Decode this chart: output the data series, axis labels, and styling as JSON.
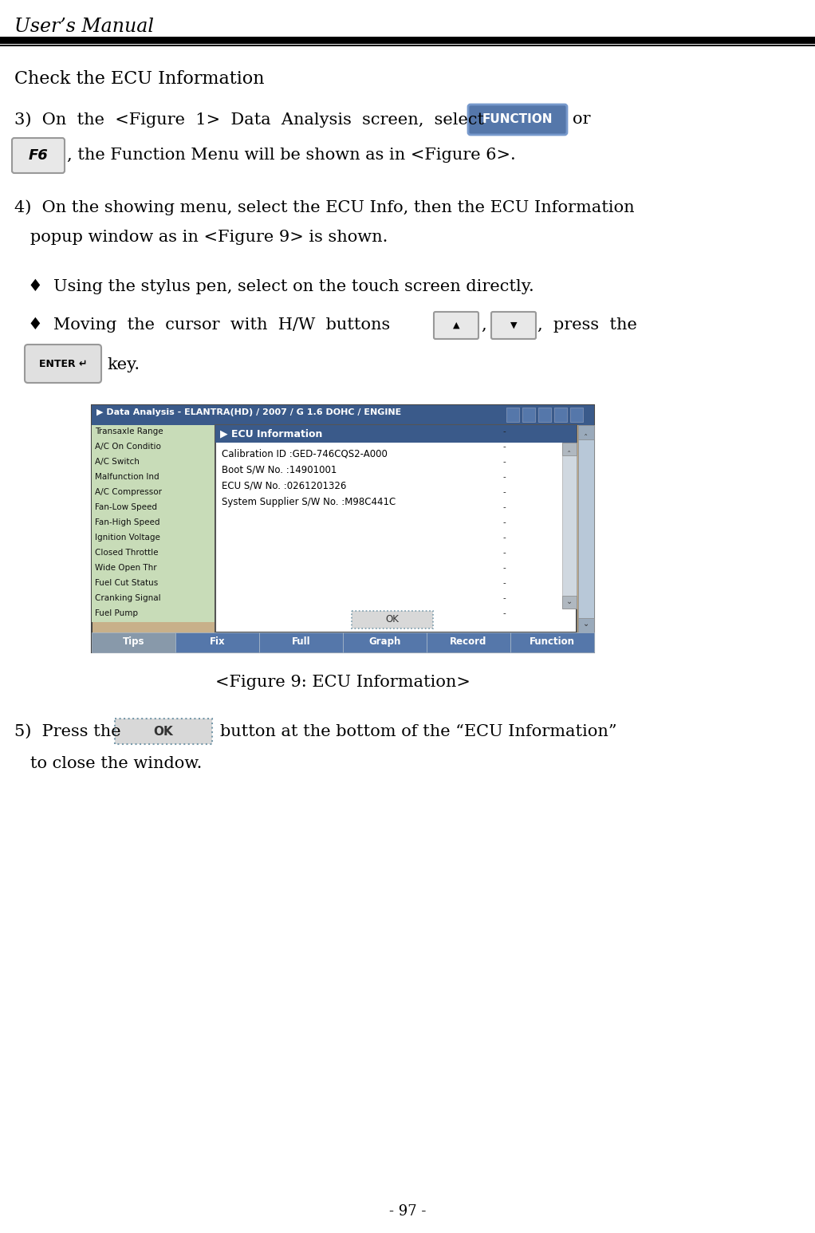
{
  "title": "User’s Manual",
  "page_num": "- 97 -",
  "section_title": "Check the ECU Information",
  "bg_color": "#ffffff",
  "body_font_color": "#000000",
  "para3_before": "3)  On  the  <Figure  1>  Data  Analysis  screen,  select",
  "para3_after": "or",
  "f6_label": "F6",
  "f6_line2": ", the Function Menu will be shown as in <Figure 6>.",
  "para4_line1": "4)  On the showing menu, select the ECU Info, then the ECU Information",
  "para4_line2": "   popup window as in <Figure 9> is shown.",
  "bullet1": "♦  Using the stylus pen, select on the touch screen directly.",
  "bullet2_pre": "♦  Moving  the  cursor  with  H/W  buttons",
  "bullet2_post": ",  press  the",
  "enter_label": "ENTER ↵",
  "key_text": "key.",
  "figure_caption": "<Figure 9: ECU Information>",
  "para5_pre": "5)  Press the",
  "para5_post": "button at the bottom of the “ECU Information”",
  "para5_line2": "   to close the window.",
  "screen_title_bar": "▶ Data Analysis - ELANTRA(HD) / 2007 / G 1.6 DOHC / ENGINE",
  "screen_bg": "#c8b08a",
  "screen_title_bg": "#3a5a8a",
  "screen_title_color": "#ffffff",
  "left_col_bg_odd": "#c8dcb8",
  "left_col_bg_even": "#d8e8c8",
  "right_col_bg": "#c8b080",
  "popup_title": "▶ ECU Information",
  "popup_title_bg": "#3a5a8a",
  "popup_title_color": "#ffffff",
  "popup_bg": "#ffffff",
  "popup_border": "#888888",
  "popup_lines": [
    "Calibration ID :GED-746CQS2-A000",
    "Boot S/W No. :14901001",
    "ECU S/W No. :0261201326",
    "System Supplier S/W No. :M98C441C"
  ],
  "left_col_items": [
    "Transaxle Range",
    "A/C On Conditio",
    "A/C Switch",
    "Malfunction Ind",
    "A/C Compressor",
    "Fan-Low Speed",
    "Fan-High Speed",
    "Ignition Voltage",
    "Closed Throttle",
    "Wide Open Thr",
    "Fuel Cut Status",
    "Cranking Signal",
    "Fuel Pump"
  ],
  "bottom_tabs": [
    "Tips",
    "Fix",
    "Full",
    "Graph",
    "Record",
    "Function"
  ],
  "tab_bg_inactive": "#8899aa",
  "tab_bg_active": "#5577aa",
  "function_btn_bg": "#5577aa",
  "function_btn_border": "#7799cc",
  "function_btn_text": "FUNCTION",
  "function_btn_color": "#ffffff",
  "scrollbar_bg": "#aabbcc",
  "scrollbar_btn": "#8899aa"
}
